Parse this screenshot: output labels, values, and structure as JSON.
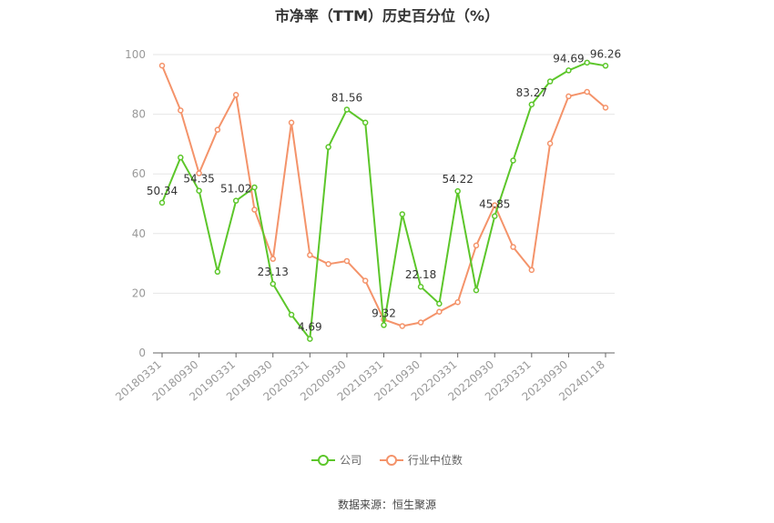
{
  "chart_data": {
    "type": "line",
    "title": "市净率（TTM）历史百分位（%）",
    "ylim": [
      0,
      100
    ],
    "yticks": [
      0,
      20,
      40,
      60,
      80,
      100
    ],
    "x_labels": [
      "20180331",
      "20180930",
      "20190331",
      "20190930",
      "20200331",
      "20200930",
      "20210331",
      "20210930",
      "20220331",
      "20220930",
      "20230331",
      "20230930",
      "20240118"
    ],
    "grid": true,
    "legend_position": "bottom",
    "series": [
      {
        "name": "公司",
        "color": "#5cc62a",
        "values": [
          50.34,
          65.5,
          54.35,
          27.2,
          51.02,
          55.5,
          23.13,
          12.8,
          4.69,
          69.0,
          81.56,
          77.2,
          9.32,
          46.5,
          22.18,
          16.5,
          54.22,
          21.0,
          45.85,
          64.5,
          83.27,
          91.0,
          94.69,
          97.3,
          96.26
        ],
        "labels": [
          "50.34",
          "",
          "54.35",
          "",
          "51.02",
          "",
          "23.13",
          "",
          "4.69",
          "",
          "81.56",
          "",
          "9.32",
          "",
          "22.18",
          "",
          "54.22",
          "",
          "45.85",
          "",
          "83.27",
          "",
          "94.69",
          "",
          "96.26"
        ]
      },
      {
        "name": "行业中位数",
        "color": "#f4936a",
        "values": [
          96.3,
          81.3,
          60.2,
          74.8,
          86.5,
          48.0,
          31.5,
          77.2,
          32.8,
          29.8,
          30.8,
          24.2,
          11.2,
          9.0,
          10.2,
          13.8,
          17.0,
          36.0,
          49.5,
          35.5,
          27.8,
          70.2,
          86.0,
          87.5,
          82.2
        ]
      }
    ]
  },
  "legend": {
    "company": "公司",
    "industry": "行业中位数"
  },
  "source": "数据来源：恒生聚源"
}
